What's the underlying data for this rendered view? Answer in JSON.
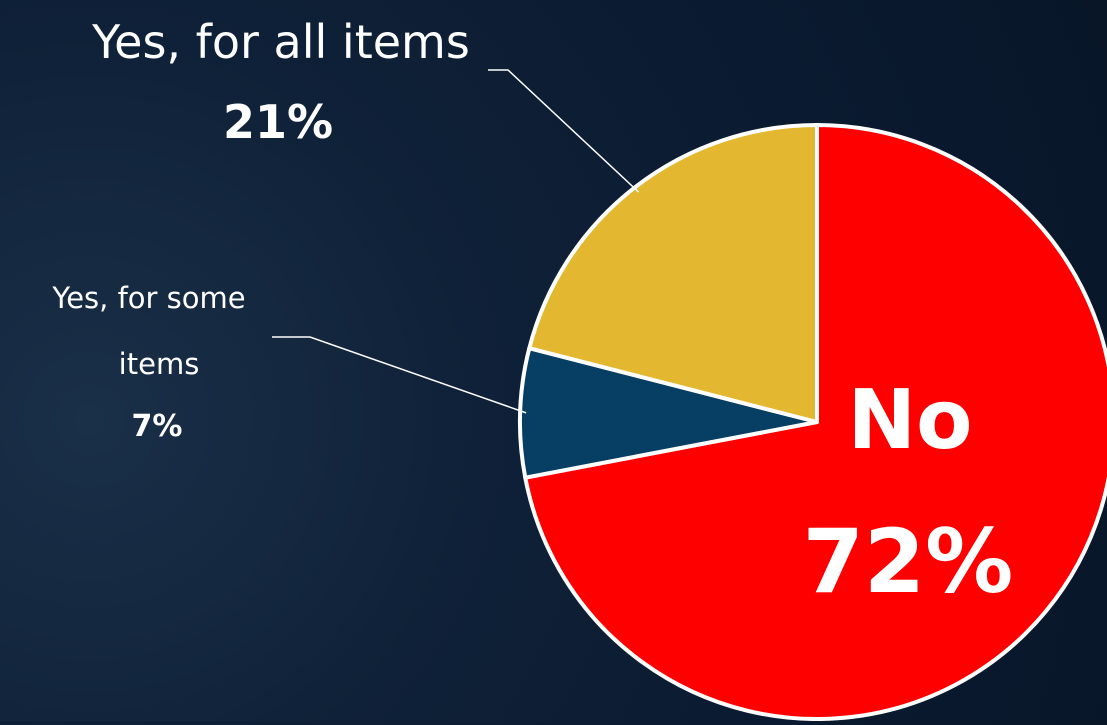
{
  "chart_data": {
    "type": "pie",
    "title": "",
    "start_angle_deg": 0,
    "direction": "clockwise",
    "slices": [
      {
        "label": "No",
        "value": 72,
        "value_label": "72%",
        "color": "#ff0000"
      },
      {
        "label": "Yes, for some items",
        "label_lines": [
          "Yes, for some",
          "items"
        ],
        "value": 7,
        "value_label": "7%",
        "color": "#063f63"
      },
      {
        "label": "Yes, for all items",
        "label_lines": [
          "Yes, for all items"
        ],
        "value": 21,
        "value_label": "21%",
        "color": "#e3b72f"
      }
    ],
    "legend": "none",
    "slice_border_color": "#ffffff",
    "label_text_color": "#ffffff",
    "leader_line_color": "#ffffff"
  }
}
